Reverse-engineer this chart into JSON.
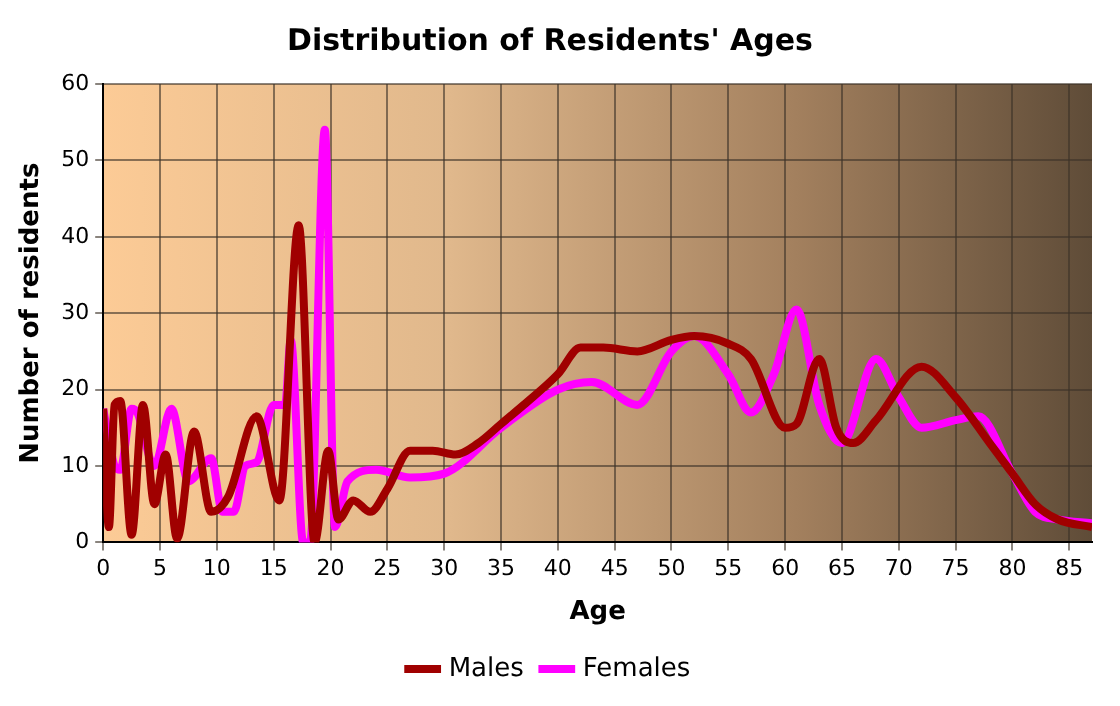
{
  "chart_data": {
    "type": "line",
    "title": "Distribution of Residents' Ages",
    "xlabel": "Age",
    "ylabel": "Number of residents",
    "xlim": [
      0,
      87
    ],
    "xticks": [
      0,
      5,
      10,
      15,
      20,
      25,
      30,
      35,
      40,
      45,
      50,
      55,
      60,
      65,
      70,
      75,
      80,
      85
    ],
    "ylim": [
      0,
      60
    ],
    "yticks": [
      0,
      10,
      20,
      30,
      40,
      50,
      60
    ],
    "grid": true,
    "legend": "bottom",
    "marker": "none",
    "line_style": "solid",
    "series": [
      {
        "name": "Males",
        "color": "#a00000",
        "x": [
          0,
          0.5,
          1,
          1.5,
          2.5,
          3.5,
          4.5,
          5.5,
          6.5,
          8,
          9.5,
          11,
          13.5,
          15.5,
          17.2,
          18.6,
          19.8,
          20.7,
          22,
          23.5,
          25,
          27,
          29,
          31,
          33,
          35,
          37,
          40,
          42,
          44,
          47,
          50,
          52,
          55,
          57,
          60,
          61,
          63,
          64.5,
          66,
          68,
          72,
          75,
          78,
          80,
          82,
          84,
          87
        ],
        "values": [
          17.5,
          2,
          18,
          18.5,
          1,
          18,
          5,
          11.5,
          0.5,
          14.5,
          4,
          6,
          16.5,
          5.5,
          41.5,
          0,
          12,
          3,
          5.5,
          4,
          7,
          12,
          12,
          11.5,
          13,
          15.5,
          18,
          22,
          25.5,
          25.5,
          25,
          26.5,
          27,
          26,
          24,
          15,
          15.5,
          24,
          15,
          13,
          16,
          23,
          19,
          13,
          9,
          5,
          3,
          2
        ]
      },
      {
        "name": "Females",
        "color": "#ff00ff",
        "x": [
          0,
          0.5,
          1,
          1.5,
          2.5,
          3,
          4.5,
          6,
          7.5,
          9.5,
          10.5,
          11.5,
          12.5,
          13.5,
          15,
          16,
          16.5,
          17.6,
          18.2,
          19.5,
          20.4,
          21.5,
          24,
          27,
          30,
          35,
          40,
          43,
          47,
          50,
          52,
          55,
          57,
          59,
          61,
          63,
          65,
          68,
          70,
          72,
          75,
          77,
          80,
          82,
          84,
          87
        ],
        "values": [
          17.5,
          13.5,
          10,
          9.5,
          17.5,
          17,
          10,
          17.5,
          8,
          11,
          4,
          4,
          10,
          10.5,
          18,
          18,
          26.5,
          0,
          0,
          54,
          2,
          8,
          9.5,
          8.5,
          9,
          15,
          20,
          21,
          18,
          25,
          27,
          22,
          17,
          22,
          30.5,
          18,
          13,
          24,
          19,
          15,
          16,
          16.5,
          9,
          4,
          3,
          2.5
        ]
      }
    ]
  }
}
